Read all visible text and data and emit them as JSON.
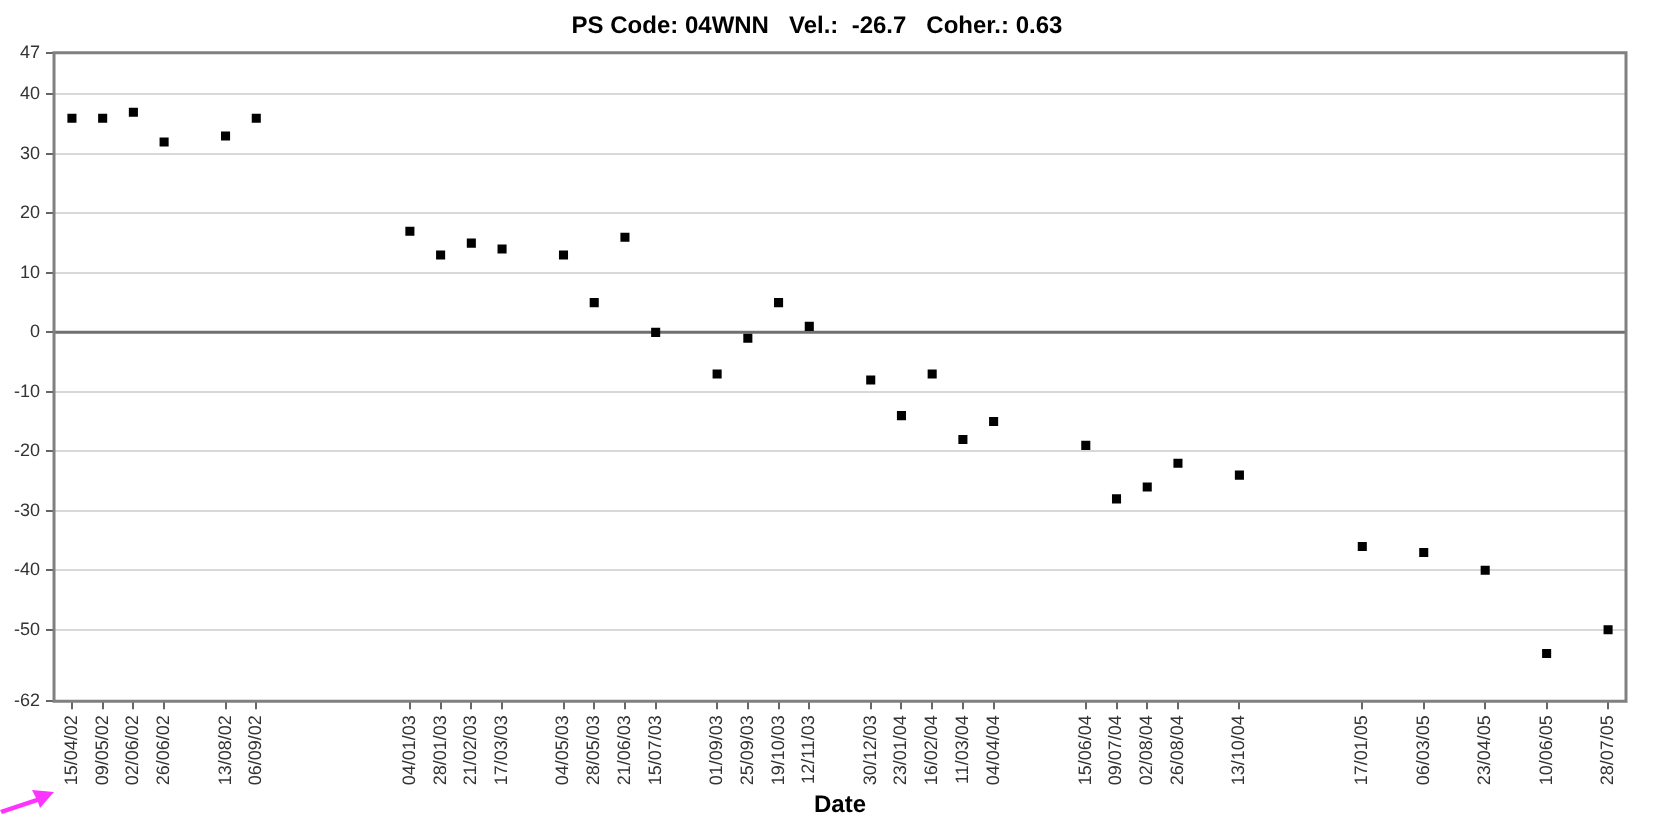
{
  "chart_data": {
    "type": "scatter",
    "title": "PS Code: 04WNN   Vel.:  -26.7   Coher.: 0.63",
    "xlabel": "Date",
    "x": [
      "2002-04-15",
      "2002-05-09",
      "2002-06-02",
      "2002-06-26",
      "2002-08-13",
      "2002-09-06",
      "2003-01-04",
      "2003-01-28",
      "2003-02-21",
      "2003-03-17",
      "2003-05-04",
      "2003-05-28",
      "2003-06-21",
      "2003-07-15",
      "2003-09-01",
      "2003-09-25",
      "2003-10-19",
      "2003-11-12",
      "2003-12-30",
      "2004-01-23",
      "2004-02-16",
      "2004-03-11",
      "2004-04-04",
      "2004-06-15",
      "2004-07-09",
      "2004-08-02",
      "2004-08-26",
      "2004-10-13",
      "2005-01-17",
      "2005-03-06",
      "2005-04-23",
      "2005-06-10",
      "2005-07-28"
    ],
    "series": [
      {
        "color": "#000000",
        "values": [
          36,
          36,
          37,
          32,
          33,
          36,
          17,
          13,
          15,
          14,
          13,
          5,
          16,
          0,
          -7,
          -1,
          5,
          1,
          -8,
          -14,
          -7,
          -18,
          -15,
          -19,
          -28,
          -26,
          -22,
          -24,
          -36,
          -37,
          -40,
          -54,
          -50
        ]
      }
    ],
    "xlim": [
      "2002-04-01",
      "2005-08-11"
    ],
    "xticks": [
      {
        "value": "2002-04-15",
        "label": "15/04/02"
      },
      {
        "value": "2002-05-09",
        "label": "09/05/02"
      },
      {
        "value": "2002-06-02",
        "label": "02/06/02"
      },
      {
        "value": "2002-06-26",
        "label": "26/06/02"
      },
      {
        "value": "2002-08-13",
        "label": "13/08/02"
      },
      {
        "value": "2002-09-06",
        "label": "06/09/02"
      },
      {
        "value": "2003-01-04",
        "label": "04/01/03"
      },
      {
        "value": "2003-01-28",
        "label": "28/01/03"
      },
      {
        "value": "2003-02-21",
        "label": "21/02/03"
      },
      {
        "value": "2003-03-17",
        "label": "17/03/03"
      },
      {
        "value": "2003-05-04",
        "label": "04/05/03"
      },
      {
        "value": "2003-05-28",
        "label": "28/05/03"
      },
      {
        "value": "2003-06-21",
        "label": "21/06/03"
      },
      {
        "value": "2003-07-15",
        "label": "15/07/03"
      },
      {
        "value": "2003-09-01",
        "label": "01/09/03"
      },
      {
        "value": "2003-09-25",
        "label": "25/09/03"
      },
      {
        "value": "2003-10-19",
        "label": "19/10/03"
      },
      {
        "value": "2003-11-12",
        "label": "12/11/03"
      },
      {
        "value": "2003-12-30",
        "label": "30/12/03"
      },
      {
        "value": "2004-01-23",
        "label": "23/01/04"
      },
      {
        "value": "2004-02-16",
        "label": "16/02/04"
      },
      {
        "value": "2004-03-11",
        "label": "11/03/04"
      },
      {
        "value": "2004-04-04",
        "label": "04/04/04"
      },
      {
        "value": "2004-06-15",
        "label": "15/06/04"
      },
      {
        "value": "2004-07-09",
        "label": "09/07/04"
      },
      {
        "value": "2004-08-02",
        "label": "02/08/04"
      },
      {
        "value": "2004-08-26",
        "label": "26/08/04"
      },
      {
        "value": "2004-10-13",
        "label": "13/10/04"
      },
      {
        "value": "2005-01-17",
        "label": "17/01/05"
      },
      {
        "value": "2005-03-06",
        "label": "06/03/05"
      },
      {
        "value": "2005-04-23",
        "label": "23/04/05"
      },
      {
        "value": "2005-06-10",
        "label": "10/06/05"
      },
      {
        "value": "2005-07-28",
        "label": "28/07/05"
      }
    ],
    "ylim": [
      -62,
      47
    ],
    "yticks": [
      -62,
      -50,
      -40,
      -30,
      -20,
      -10,
      0,
      10,
      20,
      30,
      40,
      47
    ],
    "ref_lines": [
      {
        "axis": "y",
        "value": 0,
        "color": "#707070"
      }
    ],
    "grid": "y",
    "legend": false,
    "marker": "square"
  }
}
